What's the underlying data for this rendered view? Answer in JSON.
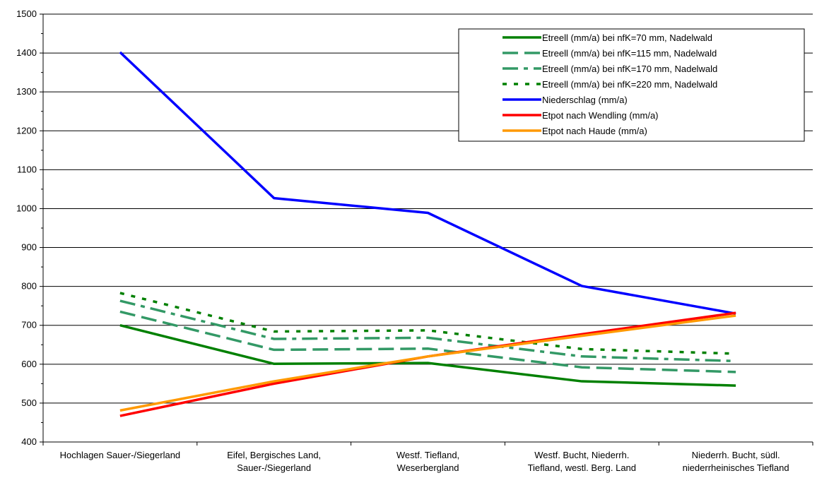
{
  "chart_data": {
    "type": "line",
    "categories": [
      [
        "Hochlagen Sauer-/Siegerland"
      ],
      [
        "Eifel, Bergisches Land,",
        "Sauer-/Siegerland"
      ],
      [
        "Westf. Tiefland,",
        "Weserbergland"
      ],
      [
        "Westf. Bucht, Niederrh.",
        "Tiefland, westl. Berg. Land"
      ],
      [
        "Niederrh. Bucht, südl.",
        "niederrheinisches Tiefland"
      ]
    ],
    "ylim": [
      400,
      1500
    ],
    "yticks": [
      400,
      500,
      600,
      700,
      800,
      900,
      1000,
      1100,
      1200,
      1300,
      1400,
      1500
    ],
    "grid": "horizontal",
    "legend_position": "top-right",
    "series": [
      {
        "name": "Etreell (mm/a)  bei nfK=70 mm, Nadelwald",
        "values": [
          700,
          601,
          603,
          556,
          545
        ],
        "color": "#008000",
        "dash": "solid"
      },
      {
        "name": "Etreell (mm/a)  bei nfK=115 mm, Nadelwald",
        "values": [
          735,
          637,
          640,
          592,
          580
        ],
        "color": "#339966",
        "dash": "long"
      },
      {
        "name": "Etreell (mm/a)  bei nfK=170 mm, Nadelwald",
        "values": [
          763,
          665,
          668,
          620,
          608
        ],
        "color": "#339966",
        "dash": "dashdot"
      },
      {
        "name": "Etreell (mm/a)  bei nfK=220 mm, Nadelwald",
        "values": [
          783,
          684,
          687,
          639,
          627
        ],
        "color": "#008000",
        "dash": "dot"
      },
      {
        "name": "Niederschlag (mm/a)",
        "values": [
          1402,
          1027,
          989,
          801,
          730
        ],
        "color": "#0000FF",
        "dash": "solid"
      },
      {
        "name": "Etpot nach Wendling (mm/a)",
        "values": [
          467,
          550,
          620,
          677,
          732
        ],
        "color": "#FF0000",
        "dash": "solid"
      },
      {
        "name": "Etpot nach Haude (mm/a)",
        "values": [
          481,
          556,
          620,
          673,
          725
        ],
        "color": "#FF9900",
        "dash": "solid"
      }
    ]
  }
}
